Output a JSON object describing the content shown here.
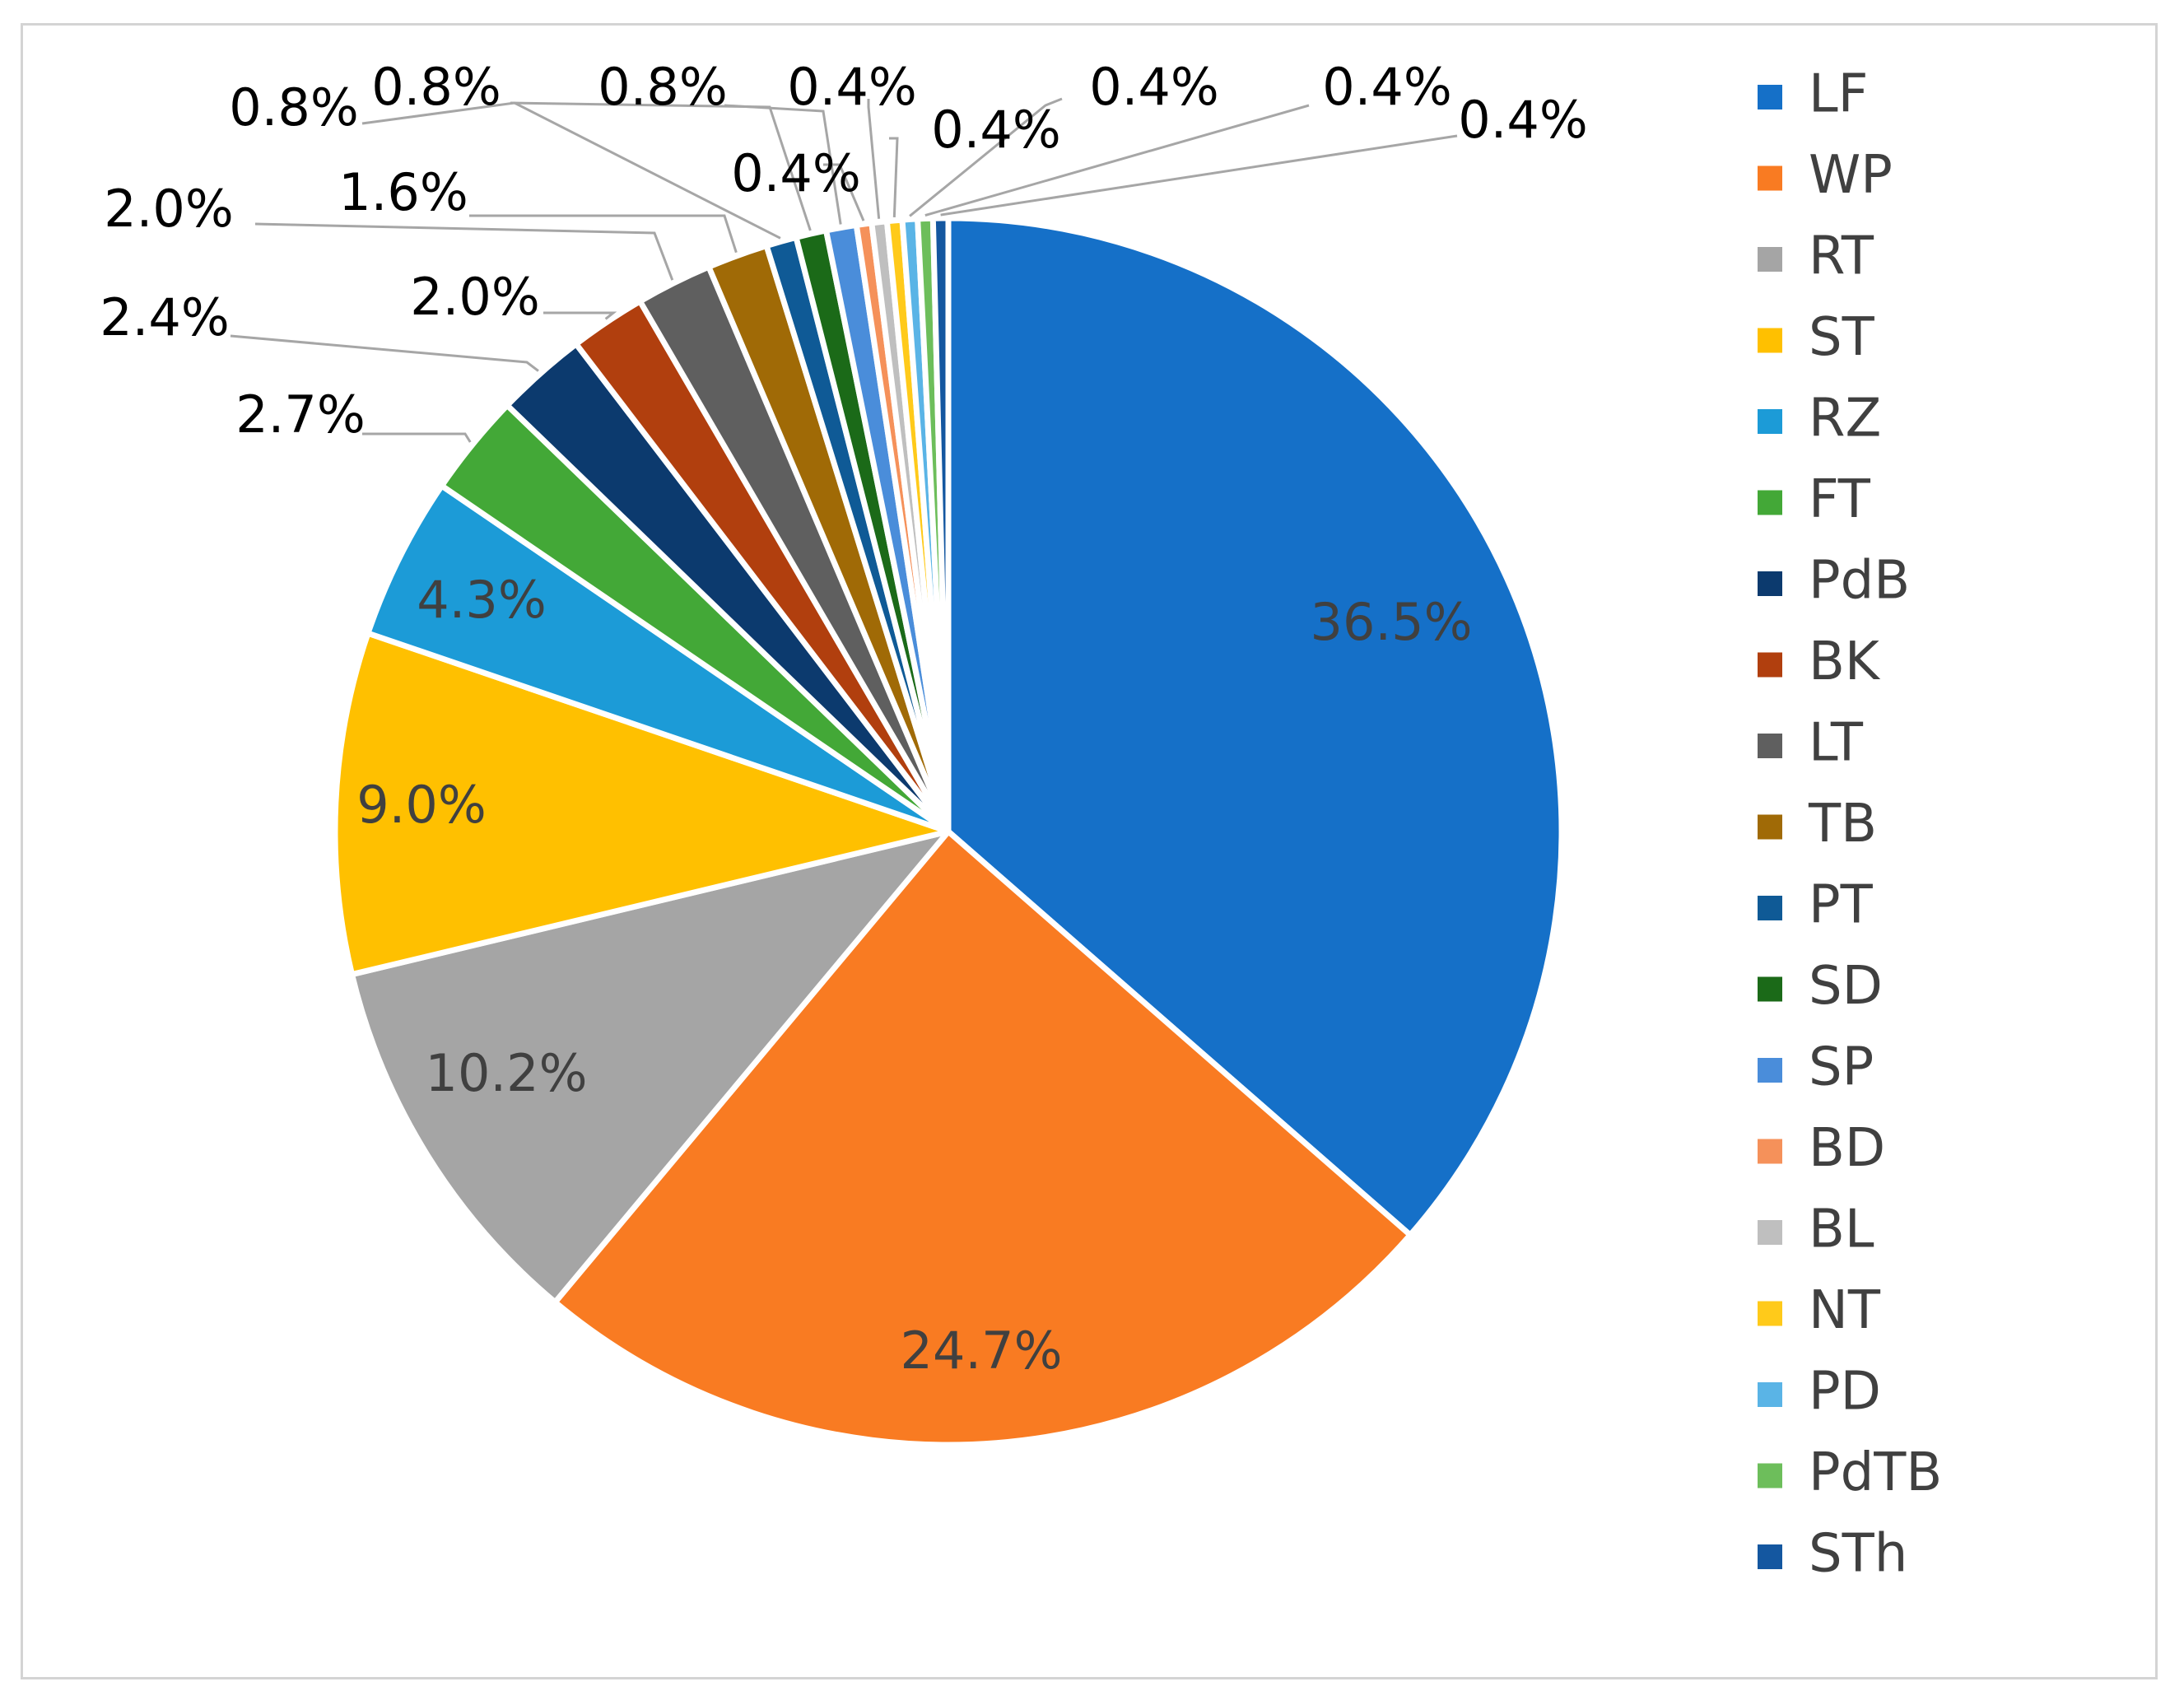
{
  "chart_data": {
    "type": "pie",
    "title": "",
    "start_angle_deg": 0,
    "direction": "clockwise",
    "legend_position": "right",
    "slices": [
      {
        "label": "LF",
        "value": 36.5,
        "display": "36.5%",
        "color": "#1570C8",
        "label_placement": "inside"
      },
      {
        "label": "WP",
        "value": 24.7,
        "display": "24.7%",
        "color": "#F97B22",
        "label_placement": "inside"
      },
      {
        "label": "RT",
        "value": 10.2,
        "display": "10.2%",
        "color": "#A5A5A5",
        "label_placement": "inside"
      },
      {
        "label": "ST",
        "value": 9.0,
        "display": "9.0%",
        "color": "#FFC000",
        "label_placement": "inside"
      },
      {
        "label": "RZ",
        "value": 4.3,
        "display": "4.3%",
        "color": "#1C9BD7",
        "label_placement": "inside"
      },
      {
        "label": "FT",
        "value": 2.7,
        "display": "2.7%",
        "color": "#43A837",
        "label_placement": "outside"
      },
      {
        "label": "PdB",
        "value": 2.4,
        "display": "2.4%",
        "color": "#0C3A6E",
        "label_placement": "outside"
      },
      {
        "label": "BK",
        "value": 2.0,
        "display": "2.0%",
        "color": "#B13F0E",
        "label_placement": "outside"
      },
      {
        "label": "LT",
        "value": 2.0,
        "display": "2.0%",
        "color": "#5F5F5F",
        "label_placement": "outside"
      },
      {
        "label": "TB",
        "value": 1.6,
        "display": "1.6%",
        "color": "#A06A06",
        "label_placement": "outside"
      },
      {
        "label": "PT",
        "value": 0.8,
        "display": "0.8%",
        "color": "#0F5A96",
        "label_placement": "outside"
      },
      {
        "label": "SD",
        "value": 0.8,
        "display": "0.8%",
        "color": "#1B6A18",
        "label_placement": "outside"
      },
      {
        "label": "SP",
        "value": 0.8,
        "display": "0.8%",
        "color": "#4A8DDA",
        "label_placement": "outside"
      },
      {
        "label": "BD",
        "value": 0.4,
        "display": "0.4%",
        "color": "#F5915A",
        "label_placement": "outside"
      },
      {
        "label": "BL",
        "value": 0.4,
        "display": "0.4%",
        "color": "#BFBFBF",
        "label_placement": "outside"
      },
      {
        "label": "NT",
        "value": 0.4,
        "display": "0.4%",
        "color": "#FFCA1A",
        "label_placement": "outside"
      },
      {
        "label": "PD",
        "value": 0.4,
        "display": "0.4%",
        "color": "#5AB4E6",
        "label_placement": "outside"
      },
      {
        "label": "PdTB",
        "value": 0.4,
        "display": "0.4%",
        "color": "#6DBE5B",
        "label_placement": "outside"
      },
      {
        "label": "STh",
        "value": 0.4,
        "display": "0.4%",
        "color": "#1457A0",
        "label_placement": "outside"
      }
    ],
    "legend": [
      "LF",
      "WP",
      "RT",
      "ST",
      "RZ",
      "FT",
      "PdB",
      "BK",
      "LT",
      "TB",
      "PT",
      "SD",
      "SP",
      "BD",
      "BL",
      "NT",
      "PD",
      "PdTB",
      "STh"
    ]
  }
}
